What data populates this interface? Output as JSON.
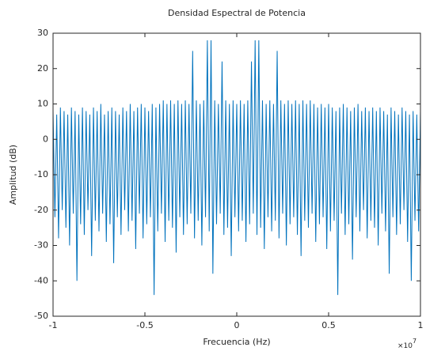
{
  "chart_data": {
    "type": "line",
    "title": "Densidad Espectral de Potencia",
    "x_label": "Frecuencia (Hz)",
    "y_label": "Amplitud (dB)",
    "x_multiplier": {
      "base": "×10",
      "exponent": "7"
    },
    "xlim": [
      -1,
      1
    ],
    "xticks": [
      -1,
      -0.5,
      0,
      0.5,
      1
    ],
    "ylim": [
      -50,
      30
    ],
    "yticks": [
      -50,
      -40,
      -30,
      -20,
      -10,
      0,
      10,
      20,
      30
    ],
    "grid": false,
    "x": [
      -1,
      -0.99,
      -0.98,
      -0.97,
      -0.96,
      -0.95,
      -0.94,
      -0.93,
      -0.92,
      -0.91,
      -0.9,
      -0.89,
      -0.88,
      -0.87,
      -0.86,
      -0.85,
      -0.84,
      -0.83,
      -0.82,
      -0.81,
      -0.8,
      -0.79,
      -0.78,
      -0.77,
      -0.76,
      -0.75,
      -0.74,
      -0.73,
      -0.72,
      -0.71,
      -0.7,
      -0.69,
      -0.68,
      -0.67,
      -0.66,
      -0.65,
      -0.64,
      -0.63,
      -0.62,
      -0.61,
      -0.6,
      -0.59,
      -0.58,
      -0.57,
      -0.56,
      -0.55,
      -0.54,
      -0.53,
      -0.52,
      -0.51,
      -0.5,
      -0.49,
      -0.48,
      -0.47,
      -0.46,
      -0.45,
      -0.44,
      -0.43,
      -0.42,
      -0.41,
      -0.4,
      -0.39,
      -0.38,
      -0.37,
      -0.36,
      -0.35,
      -0.34,
      -0.33,
      -0.32,
      -0.31,
      -0.3,
      -0.29,
      -0.28,
      -0.27,
      -0.26,
      -0.25,
      -0.24,
      -0.23,
      -0.22,
      -0.21,
      -0.2,
      -0.19,
      -0.18,
      -0.17,
      -0.16,
      -0.15,
      -0.14,
      -0.13,
      -0.12,
      -0.11,
      -0.1,
      -0.09,
      -0.08,
      -0.07,
      -0.06,
      -0.05,
      -0.04,
      -0.03,
      -0.02,
      -0.01,
      0,
      0.01,
      0.02,
      0.03,
      0.04,
      0.05,
      0.06,
      0.07,
      0.08,
      0.09,
      0.1,
      0.11,
      0.12,
      0.13,
      0.14,
      0.15,
      0.16,
      0.17,
      0.18,
      0.19,
      0.2,
      0.21,
      0.22,
      0.23,
      0.24,
      0.25,
      0.26,
      0.27,
      0.28,
      0.29,
      0.3,
      0.31,
      0.32,
      0.33,
      0.34,
      0.35,
      0.36,
      0.37,
      0.38,
      0.39,
      0.4,
      0.41,
      0.42,
      0.43,
      0.44,
      0.45,
      0.46,
      0.47,
      0.48,
      0.49,
      0.5,
      0.51,
      0.52,
      0.53,
      0.54,
      0.55,
      0.56,
      0.57,
      0.58,
      0.59,
      0.6,
      0.61,
      0.62,
      0.63,
      0.64,
      0.65,
      0.66,
      0.67,
      0.68,
      0.69,
      0.7,
      0.71,
      0.72,
      0.73,
      0.74,
      0.75,
      0.76,
      0.77,
      0.78,
      0.79,
      0.8,
      0.81,
      0.82,
      0.83,
      0.84,
      0.85,
      0.86,
      0.87,
      0.88,
      0.89,
      0.9,
      0.91,
      0.92,
      0.93,
      0.94,
      0.95,
      0.96,
      0.97,
      0.98,
      0.99,
      1
    ],
    "series": [
      {
        "color": "#0072bd",
        "values": [
          8,
          -22,
          7,
          -28,
          9,
          -20,
          8,
          -25,
          7,
          -30,
          9,
          -21,
          8,
          -40,
          7,
          -24,
          9,
          -27,
          8,
          -20,
          7,
          -33,
          9,
          -23,
          8,
          -26,
          10,
          -21,
          7,
          -29,
          8,
          -24,
          9,
          -35,
          8,
          -22,
          7,
          -27,
          9,
          -20,
          8,
          -26,
          10,
          -23,
          8,
          -31,
          9,
          -21,
          10,
          -28,
          9,
          -24,
          8,
          -22,
          10,
          -44,
          9,
          -26,
          10,
          -21,
          11,
          -29,
          10,
          -23,
          11,
          -25,
          10,
          -32,
          11,
          -22,
          10,
          -27,
          11,
          -24,
          10,
          -21,
          25,
          -28,
          11,
          -23,
          10,
          -30,
          11,
          -22,
          28,
          -26,
          28,
          -38,
          11,
          -24,
          10,
          -21,
          22,
          -27,
          11,
          -25,
          10,
          -33,
          11,
          -22,
          10,
          -26,
          11,
          -23,
          10,
          -29,
          11,
          -24,
          22,
          -21,
          28,
          -27,
          28,
          -25,
          11,
          -31,
          10,
          -22,
          11,
          -26,
          10,
          -23,
          25,
          -28,
          11,
          -21,
          10,
          -30,
          11,
          -24,
          10,
          -22,
          11,
          -27,
          10,
          -33,
          11,
          -23,
          10,
          -25,
          11,
          -21,
          10,
          -29,
          9,
          -24,
          10,
          -22,
          9,
          -31,
          10,
          -26,
          9,
          -23,
          8,
          -44,
          9,
          -21,
          10,
          -27,
          9,
          -24,
          8,
          -34,
          9,
          -22,
          10,
          -26,
          8,
          -20,
          9,
          -28,
          8,
          -23,
          9,
          -25,
          8,
          -30,
          9,
          -21,
          8,
          -26,
          7,
          -38,
          9,
          -22,
          8,
          -27,
          7,
          -24,
          9,
          -20,
          8,
          -29,
          7,
          -40,
          8,
          -23,
          7,
          -26,
          8
        ]
      }
    ]
  }
}
